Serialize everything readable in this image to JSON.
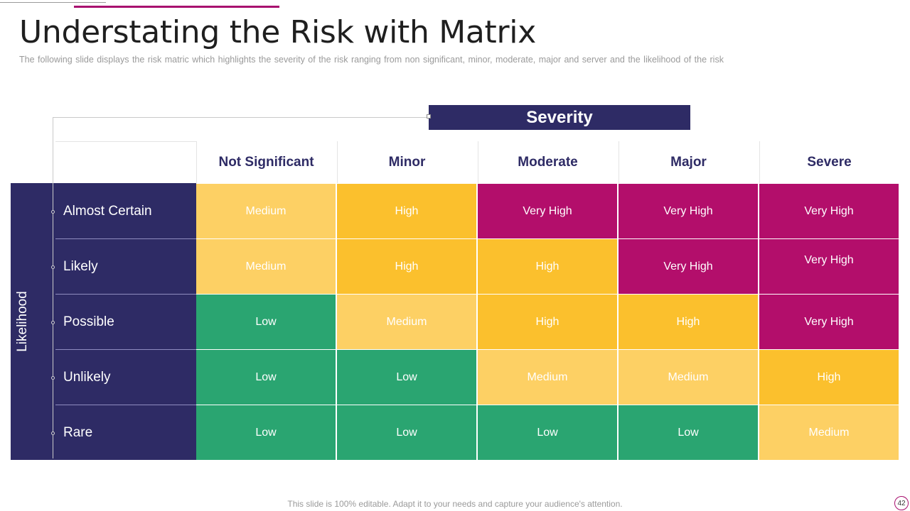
{
  "title": "Understating the Risk with Matrix",
  "subtitle": "The following slide displays the risk matric which highlights the severity of the risk ranging from non significant, minor, moderate, major and server and the likelihood of the risk",
  "severity_label": "Severity",
  "likelihood_label": "Likelihood",
  "columns": [
    "Not Significant",
    "Minor",
    "Moderate",
    "Major",
    "Severe"
  ],
  "rows": [
    "Almost Certain",
    "Likely",
    "Possible",
    "Unlikely",
    "Rare"
  ],
  "matrix": [
    [
      "Medium",
      "High",
      "Very High",
      "Very High",
      "Very High"
    ],
    [
      "Medium",
      "High",
      "High",
      "Very High",
      "Very High"
    ],
    [
      "Low",
      "Medium",
      "High",
      "High",
      "Very High"
    ],
    [
      "Low",
      "Low",
      "Medium",
      "Medium",
      "High"
    ],
    [
      "Low",
      "Low",
      "Low",
      "Low",
      "Medium"
    ]
  ],
  "level_colors": {
    "Low": "#2aa571",
    "Medium": "#fdd064",
    "High": "#fbc02d",
    "Very High": "#b30e6b"
  },
  "colors": {
    "navy": "#2e2b65",
    "accent": "#a8106f"
  },
  "footer": "This slide is 100% editable. Adapt it to your needs and capture your audience's attention.",
  "page_number": "42"
}
